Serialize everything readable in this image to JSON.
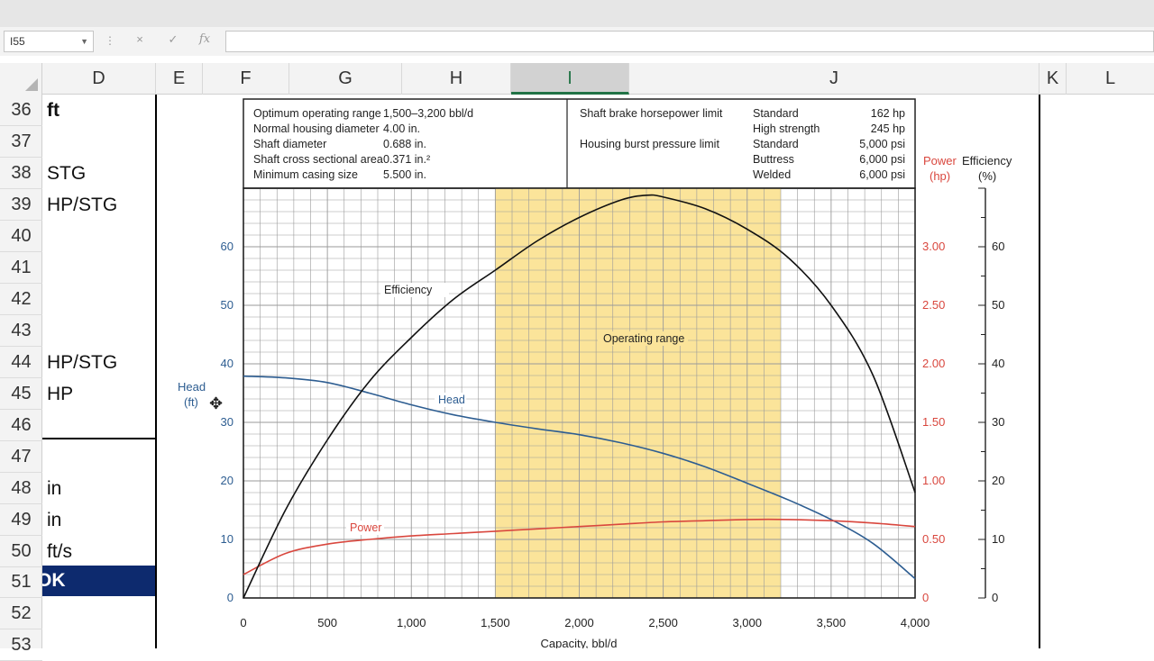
{
  "formula_bar": {
    "name_box": "I55",
    "cancel_icon": "×",
    "enter_icon": "✓",
    "fx_label": "fx",
    "formula": ""
  },
  "columns": [
    "D",
    "E",
    "F",
    "G",
    "H",
    "I",
    "J",
    "K",
    "L"
  ],
  "selected_column": "I",
  "rows": [
    "36",
    "37",
    "38",
    "39",
    "40",
    "41",
    "42",
    "43",
    "44",
    "45",
    "46",
    "47",
    "48",
    "49",
    "50",
    "51",
    "52",
    "53"
  ],
  "cells_d": {
    "r36": "ft",
    "r38": "STG",
    "r39": "HP/STG",
    "r44": "HP/STG",
    "r45": "HP",
    "r48": "in",
    "r49": "in",
    "r50": "ft/s",
    "r51": "OK"
  },
  "info_table": {
    "left_labels": [
      "Optimum operating range",
      "Normal housing diameter",
      "Shaft diameter",
      "Shaft cross sectional area",
      "Minimum casing size"
    ],
    "left_values": [
      "1,500–3,200 bbl/d",
      "4.00 in.",
      "0.688 in.",
      "0.371 in.²",
      "5.500 in."
    ],
    "right_labels": [
      "Shaft brake horsepower limit",
      "",
      "Housing burst pressure limit",
      "",
      ""
    ],
    "right_types": [
      "Standard",
      "High strength",
      "Standard",
      "Buttress",
      "Welded"
    ],
    "right_values": [
      "162 hp",
      "245 hp",
      "5,000 psi",
      "6,000 psi",
      "6,000 psi"
    ]
  },
  "chart_data": {
    "type": "line",
    "xlabel": "Capacity, bbl/d",
    "xlim": [
      0,
      4000
    ],
    "x_ticks": [
      "0",
      "500",
      "1,000",
      "1,500",
      "2,000",
      "2,500",
      "3,000",
      "3,500",
      "4,000"
    ],
    "head_axis": {
      "label_line1": "Head",
      "label_line2": "(ft)",
      "ylim": [
        0,
        70
      ],
      "ticks": [
        "0",
        "10",
        "20",
        "30",
        "40",
        "50",
        "60"
      ]
    },
    "power_axis": {
      "label_line1": "Power",
      "label_line2": "(hp)",
      "ylim": [
        0,
        3.5
      ],
      "ticks": [
        "0",
        "0.50",
        "1.00",
        "1.50",
        "2.00",
        "2.50",
        "3.00"
      ]
    },
    "efficiency_axis": {
      "label_line1": "Efficiency",
      "label_line2": "(%)",
      "ylim": [
        0,
        70
      ],
      "ticks": [
        "0",
        "10",
        "20",
        "30",
        "40",
        "50",
        "60"
      ]
    },
    "operating_range": {
      "x": [
        1500,
        3200
      ],
      "label": "Operating range"
    },
    "series": [
      {
        "name": "Head",
        "axis": "head",
        "color": "#2d5d91",
        "x": [
          0,
          250,
          500,
          750,
          1000,
          1250,
          1500,
          1750,
          2000,
          2250,
          2500,
          2750,
          3000,
          3250,
          3500,
          3750,
          4000
        ],
        "values": [
          37.9,
          37.6,
          36.8,
          35.0,
          33.0,
          31.3,
          30.0,
          28.9,
          27.9,
          26.5,
          24.7,
          22.4,
          19.6,
          16.7,
          13.4,
          9.3,
          3.3
        ]
      },
      {
        "name": "Power",
        "axis": "power",
        "color": "#d9473e",
        "x": [
          0,
          250,
          500,
          750,
          1000,
          1250,
          1500,
          1750,
          2000,
          2250,
          2500,
          2750,
          3000,
          3250,
          3500,
          3750,
          4000
        ],
        "values": [
          0.2,
          0.38,
          0.46,
          0.5,
          0.53,
          0.55,
          0.57,
          0.59,
          0.61,
          0.63,
          0.65,
          0.66,
          0.67,
          0.67,
          0.66,
          0.64,
          0.61
        ]
      },
      {
        "name": "Efficiency",
        "axis": "efficiency",
        "color": "#111111",
        "x": [
          0,
          250,
          500,
          750,
          1000,
          1250,
          1500,
          1750,
          2000,
          2250,
          2400,
          2500,
          2750,
          3000,
          3250,
          3500,
          3750,
          4000
        ],
        "values": [
          0,
          15,
          27,
          37,
          44.5,
          51,
          56,
          61,
          65,
          68,
          68.8,
          68.5,
          66.5,
          63,
          58,
          50,
          38,
          18
        ]
      }
    ]
  }
}
